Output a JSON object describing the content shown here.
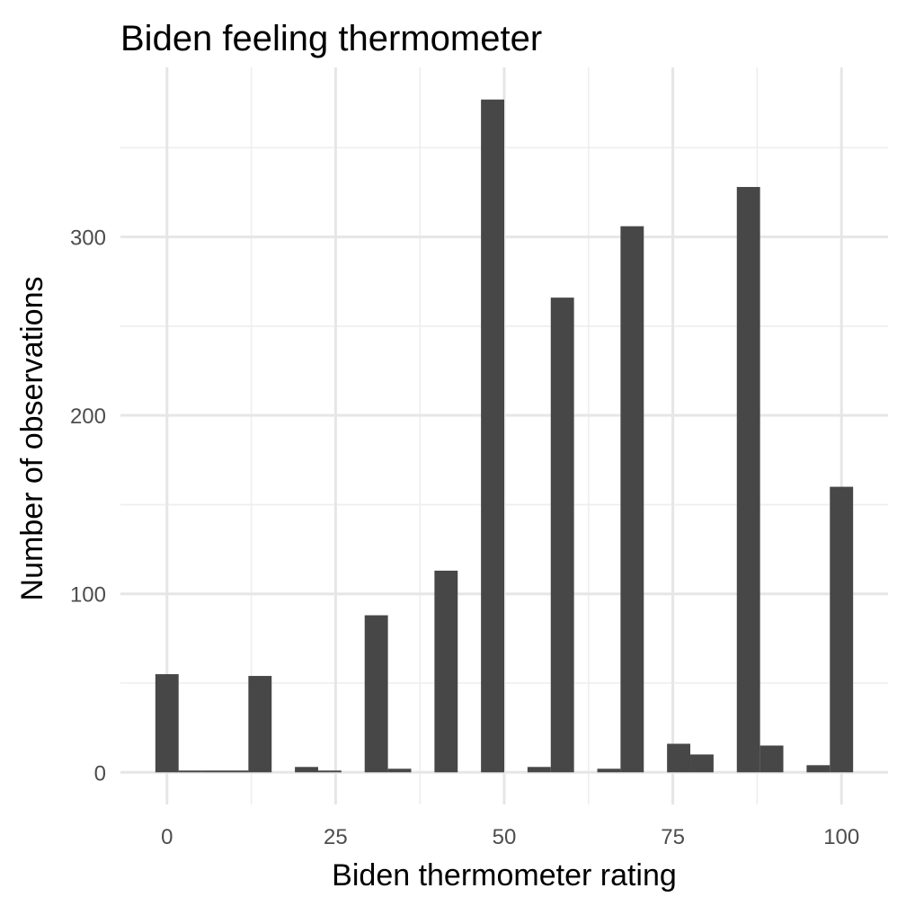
{
  "chart_data": {
    "type": "bar",
    "title": "Biden feeling thermometer",
    "xlabel": "Biden thermometer rating",
    "ylabel": "Number of observations",
    "xlim": [
      -6.9,
      106.9
    ],
    "ylim": [
      -18,
      395
    ],
    "x_ticks": [
      0,
      25,
      50,
      75,
      100
    ],
    "x_tick_labels": [
      "0",
      "25",
      "50",
      "75",
      "100"
    ],
    "x_minor_ticks": [
      12.5,
      37.5,
      62.5,
      87.5
    ],
    "y_ticks": [
      0,
      100,
      200,
      300
    ],
    "y_tick_labels": [
      "0",
      "100",
      "200",
      "300"
    ],
    "y_minor_ticks": [
      50,
      150,
      250,
      350
    ],
    "bin_width": 3.448,
    "bin_centers": [
      0,
      3.448,
      6.897,
      10.345,
      13.793,
      17.241,
      20.69,
      24.138,
      27.586,
      31.034,
      34.483,
      37.931,
      41.379,
      44.828,
      48.276,
      51.724,
      55.172,
      58.621,
      62.069,
      65.517,
      68.966,
      72.414,
      75.862,
      79.31,
      82.759,
      86.207,
      89.655,
      93.103,
      96.552,
      100
    ],
    "counts": [
      55,
      1,
      1,
      1,
      54,
      0,
      3,
      1,
      0,
      88,
      2,
      0,
      113,
      0,
      377,
      0,
      3,
      266,
      0,
      2,
      306,
      0,
      16,
      10,
      0,
      328,
      15,
      0,
      4,
      160
    ],
    "grid": true,
    "bar_color": "#474747"
  }
}
